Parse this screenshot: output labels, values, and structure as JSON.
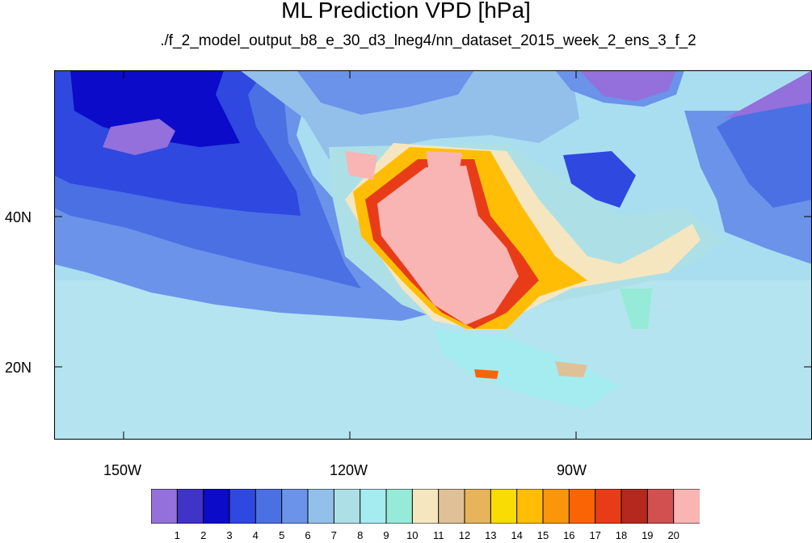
{
  "title": "ML Prediction VPD [hPa]",
  "subtitle": "./f_2_model_output_b8_e_30_d3_lneg4/nn_dataset_2015_week_2_ens_3_f_2",
  "axes": {
    "lon_labels": [
      "150W",
      "120W",
      "90W"
    ],
    "lat_labels": [
      "40N",
      "20N"
    ]
  },
  "colorbar": {
    "labels": [
      "1",
      "2",
      "3",
      "4",
      "5",
      "6",
      "7",
      "8",
      "9",
      "10",
      "11",
      "12",
      "13",
      "14",
      "15",
      "16",
      "17",
      "18",
      "19",
      "20"
    ],
    "colors": [
      "#9370db",
      "#3f33c8",
      "#0b0bc9",
      "#2e48e0",
      "#4a70e3",
      "#6b93ea",
      "#93c0ea",
      "#ade0e6",
      "#a5ecf1",
      "#96ead8",
      "#f5e6c0",
      "#e0c096",
      "#e6b45a",
      "#fadc05",
      "#ffbe05",
      "#fa960a",
      "#fa6405",
      "#e83c18",
      "#b4281e",
      "#d25050",
      "#f9b4b4"
    ]
  },
  "regions": {
    "ocean_color": "#9fd9e9",
    "highlight_color": "#f9b4b4"
  }
}
